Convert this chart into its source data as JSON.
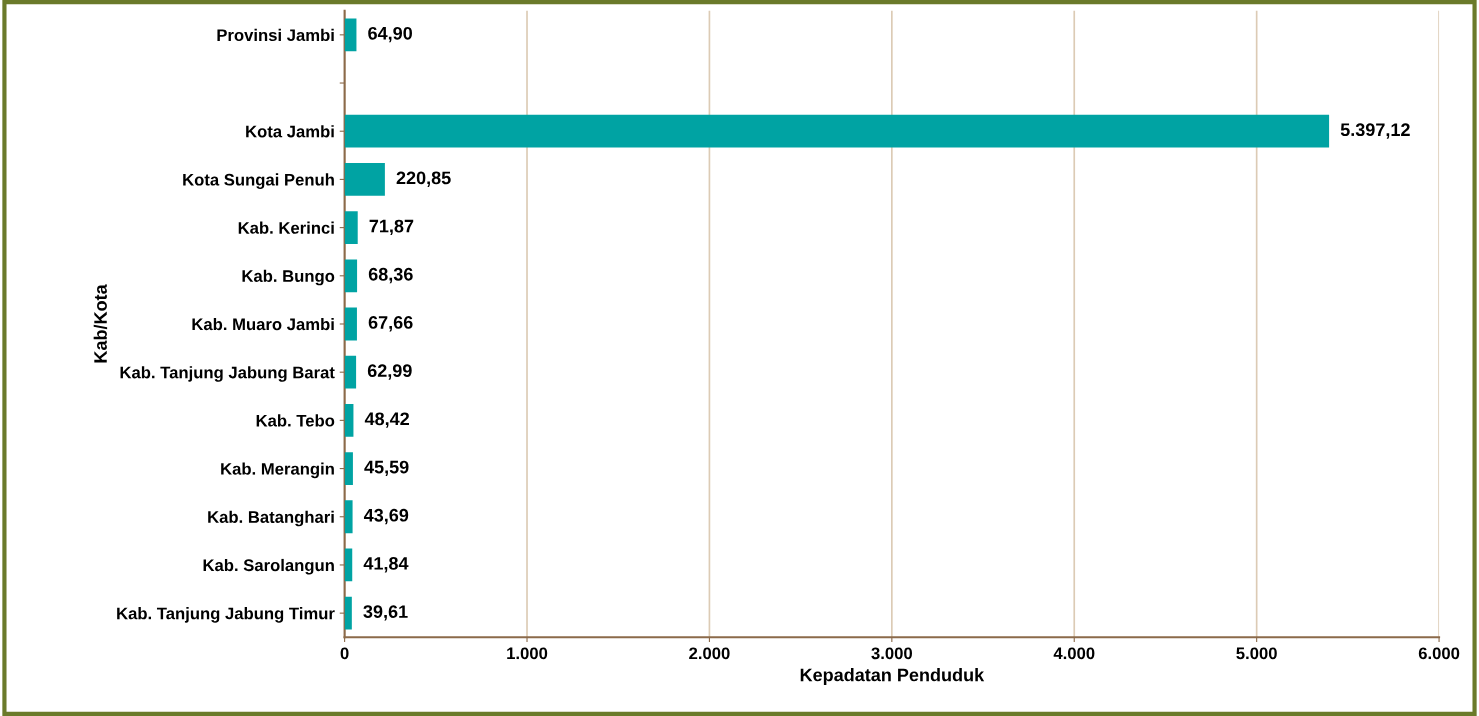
{
  "chart_data": {
    "type": "bar",
    "orientation": "horizontal",
    "categories": [
      "Provinsi Jambi",
      null,
      "Kota Jambi",
      "Kota Sungai Penuh",
      "Kab. Kerinci",
      "Kab. Bungo",
      "Kab. Muaro Jambi",
      "Kab. Tanjung Jabung Barat",
      "Kab. Tebo",
      "Kab. Merangin",
      "Kab. Batanghari",
      "Kab. Sarolangun",
      "Kab. Tanjung Jabung Timur"
    ],
    "values": [
      64.9,
      null,
      5397.12,
      220.85,
      71.87,
      68.36,
      67.66,
      62.99,
      48.42,
      45.59,
      43.69,
      41.84,
      39.61
    ],
    "value_labels": [
      "64,90",
      null,
      "5.397,12",
      "220,85",
      "71,87",
      "68,36",
      "67,66",
      "62,99",
      "48,42",
      "45,59",
      "43,69",
      "41,84",
      "39,61"
    ],
    "color": "#00a3a3",
    "xlabel": "Kepadatan Penduduk",
    "ylabel": "Kab/Kota",
    "xlim": [
      0,
      6000
    ],
    "xticks": [
      0,
      {
        "value": 1000,
        "label": "1.000"
      },
      {
        "value": 2000,
        "label": "2.000"
      },
      {
        "value": 3000,
        "label": "3.000"
      },
      {
        "value": 4000,
        "label": "4.000"
      },
      {
        "value": 5000,
        "label": "5.000"
      },
      {
        "value": 6000,
        "label": "6.000"
      }
    ],
    "grid": "x"
  }
}
